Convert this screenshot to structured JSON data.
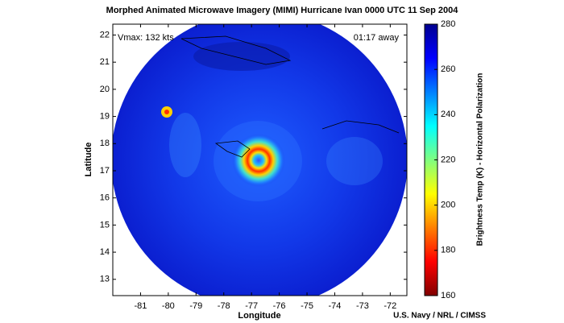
{
  "chart_data": {
    "type": "image",
    "title": "Morphed Animated Microwave Imagery (MIMI)  Hurricane Ivan  0000 UTC  11 Sep 2004",
    "xlabel": "Longitude",
    "ylabel": "Latitude",
    "xlim": [
      -82.0,
      -71.4
    ],
    "xticks": [
      -81,
      -80,
      -79,
      -78,
      -77,
      -76,
      -75,
      -74,
      -73,
      -72
    ],
    "ylim": [
      12.4,
      22.4
    ],
    "yticks": [
      13,
      14,
      15,
      16,
      17,
      18,
      19,
      20,
      21,
      22
    ],
    "colorbar": {
      "label": "Brightness Temp (K) - Horizontal Polarization",
      "lim": [
        160,
        280
      ],
      "ticks": [
        160,
        180,
        200,
        220,
        240,
        260,
        280
      ]
    },
    "annotations": [
      "Vmax: 132 kts",
      "01:17 away",
      "U.S. Navy / NRL / CIMSS"
    ]
  }
}
